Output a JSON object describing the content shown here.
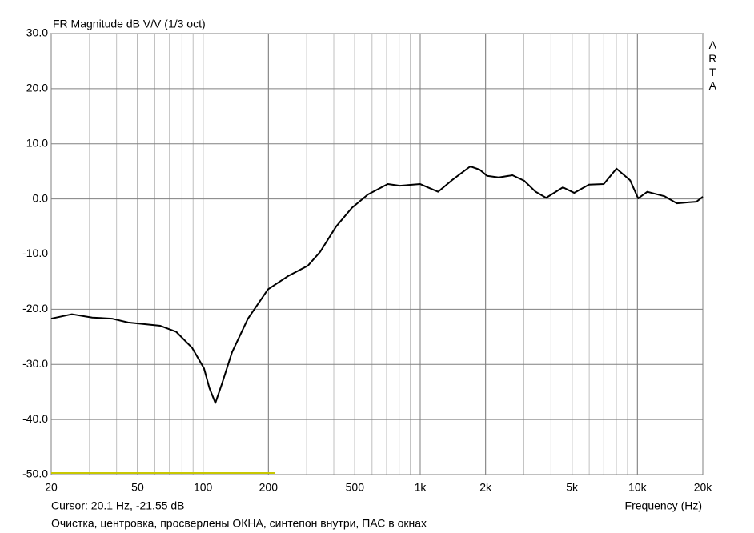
{
  "chart_data": {
    "type": "line",
    "title": "FR Magnitude dB V/V (1/3 oct)",
    "brand": "ARTA",
    "x_label": "Frequency (Hz)",
    "cursor": "Cursor: 20.1 Hz, -21.55 dB",
    "note": "Очистка, центровка, просверлены ОКНА, синтепон внутри, ПАС в окнах",
    "x_scale": "log",
    "grid": true,
    "minor_grid": true,
    "xlim": [
      20,
      20000
    ],
    "ylim": [
      -50,
      30
    ],
    "xticks": [
      20,
      50,
      100,
      200,
      500,
      {
        "value": 1000,
        "label": "1k"
      },
      {
        "value": 2000,
        "label": "2k"
      },
      {
        "value": 5000,
        "label": "5k"
      },
      {
        "value": 10000,
        "label": "10k"
      },
      {
        "value": 20000,
        "label": "20k"
      }
    ],
    "yticks": [
      {
        "value": -50,
        "label": "-50.0"
      },
      {
        "value": -40,
        "label": "-40.0"
      },
      {
        "value": -30,
        "label": "-30.0"
      },
      {
        "value": -20,
        "label": "-20.0"
      },
      {
        "value": -10,
        "label": "-10.0"
      },
      {
        "value": 0,
        "label": "0.0"
      },
      {
        "value": 10,
        "label": "10.0"
      },
      {
        "value": 20,
        "label": "20.0"
      },
      {
        "value": 30,
        "label": "30.0"
      }
    ],
    "series": [
      {
        "color": "#000000",
        "x": [
          20,
          24.9,
          30.9,
          38.1,
          45.2,
          63.6,
          75.3,
          89.1,
          101,
          107,
          114,
          122,
          136,
          161,
          199,
          246,
          304,
          346,
          410,
          485,
          574,
          709,
          806,
          1000,
          1210,
          1400,
          1700,
          1880,
          2030,
          2300,
          2660,
          3010,
          3400,
          3800,
          4540,
          5120,
          5980,
          7000,
          8010,
          9250,
          10080,
          11100,
          13300,
          15200,
          17300,
          18700,
          20000
        ],
        "values": [
          -21.7,
          -20.9,
          -21.5,
          -21.7,
          -22.4,
          -23,
          -24.1,
          -27,
          -30.7,
          -34.3,
          -37,
          -33.6,
          -27.8,
          -21.7,
          -16.4,
          -14,
          -12.1,
          -9.6,
          -5,
          -1.6,
          0.8,
          2.7,
          2.4,
          2.7,
          1.3,
          3.4,
          5.9,
          5.3,
          4.2,
          3.9,
          4.3,
          3.3,
          1.3,
          0.2,
          2.1,
          1.1,
          2.6,
          2.7,
          5.5,
          3.4,
          0.1,
          1.3,
          0.5,
          -0.8,
          -0.6,
          -0.5,
          0.4
        ]
      }
    ]
  }
}
